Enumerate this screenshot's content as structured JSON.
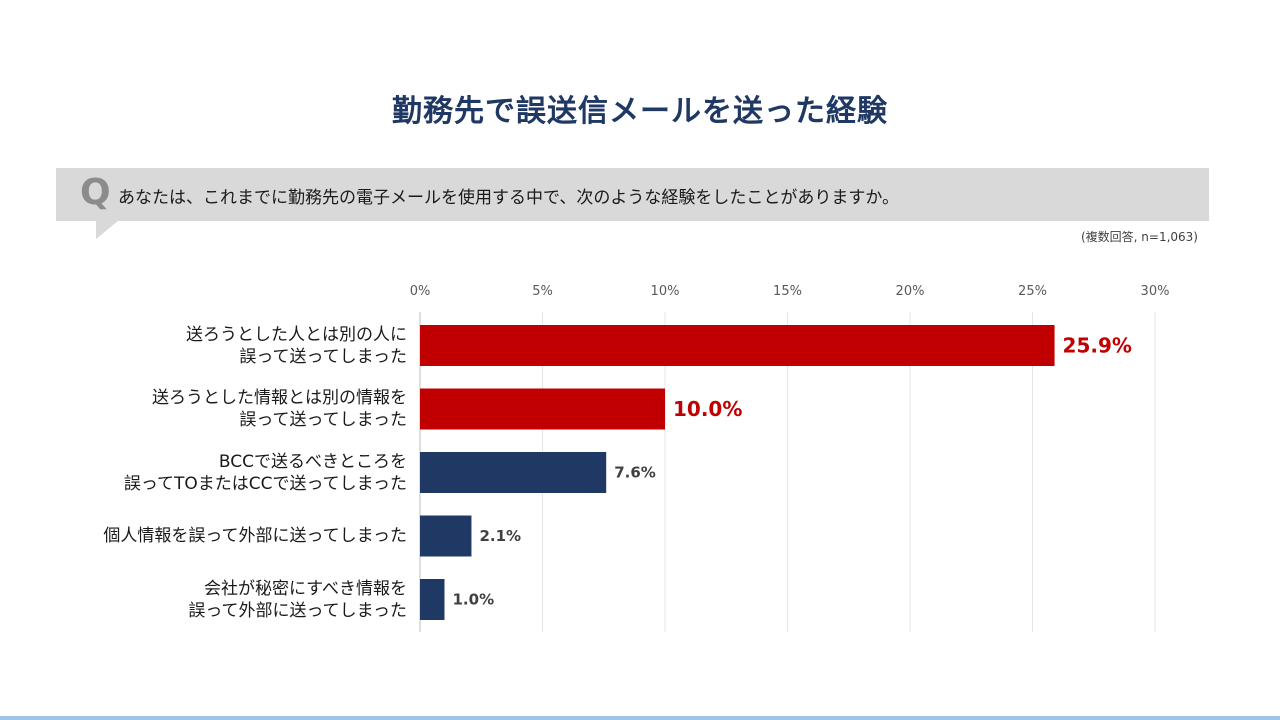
{
  "title": "勤務先で誤送信メールを送った経験",
  "question": {
    "label": "Q",
    "text": "あなたは、これまでに勤務先の電子メールを使用する中で、次のような経験をしたことがありますか。"
  },
  "note": "(複数回答, n=1,063)",
  "colors": {
    "highlight": "#c00000",
    "normal": "#203864",
    "label_highlight": "#c00000",
    "label_normal": "#404040",
    "title": "#1f3864"
  },
  "chart_data": {
    "type": "bar",
    "orientation": "horizontal",
    "xlim": [
      0,
      30
    ],
    "ticks": [
      0,
      5,
      10,
      15,
      20,
      25,
      30
    ],
    "tick_labels": [
      "0%",
      "5%",
      "10%",
      "15%",
      "20%",
      "25%",
      "30%"
    ],
    "grid": true,
    "categories": [
      [
        "送ろうとした人とは別の人に",
        "誤って送ってしまった"
      ],
      [
        "送ろうとした情報とは別の情報を",
        "誤って送ってしまった"
      ],
      [
        "BCCで送るべきところを",
        "誤ってTOまたはCCで送ってしまった"
      ],
      [
        "個人情報を誤って外部に送ってしまった"
      ],
      [
        "会社が秘密にすべき情報を",
        "誤って外部に送ってしまった"
      ]
    ],
    "values": [
      25.9,
      10.0,
      7.6,
      2.1,
      1.0
    ],
    "value_labels": [
      "25.9%",
      "10.0%",
      "7.6%",
      "2.1%",
      "1.0%"
    ],
    "highlighted": [
      true,
      true,
      false,
      false,
      false
    ]
  }
}
